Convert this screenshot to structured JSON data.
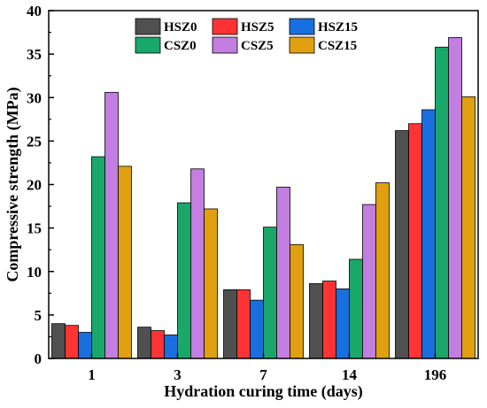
{
  "chart_data": {
    "type": "bar",
    "title": "",
    "xlabel": "Hydration curing time (days)",
    "ylabel": "Compressive strength (MPa)",
    "ylim": [
      0,
      40
    ],
    "yticks": [
      0,
      5,
      10,
      15,
      20,
      25,
      30,
      35,
      40
    ],
    "categories": [
      "1",
      "3",
      "7",
      "14",
      "196"
    ],
    "legend_position": "top-center",
    "grid": false,
    "series": [
      {
        "name": "HSZ0",
        "color": "#505050",
        "values": [
          4.0,
          3.6,
          7.9,
          8.6,
          26.2
        ]
      },
      {
        "name": "HSZ5",
        "color": "#ff3333",
        "values": [
          3.8,
          3.2,
          7.9,
          8.9,
          27.0
        ]
      },
      {
        "name": "HSZ15",
        "color": "#1a6fe0",
        "values": [
          3.0,
          2.7,
          6.7,
          8.0,
          28.6
        ]
      },
      {
        "name": "CSZ0",
        "color": "#1aa86a",
        "values": [
          23.2,
          17.9,
          15.1,
          11.4,
          35.8
        ]
      },
      {
        "name": "CSZ5",
        "color": "#c27ee0",
        "values": [
          30.6,
          21.8,
          19.7,
          17.7,
          36.9
        ]
      },
      {
        "name": "CSZ15",
        "color": "#e0a010",
        "values": [
          22.1,
          17.2,
          13.1,
          20.2,
          30.1
        ]
      }
    ]
  }
}
